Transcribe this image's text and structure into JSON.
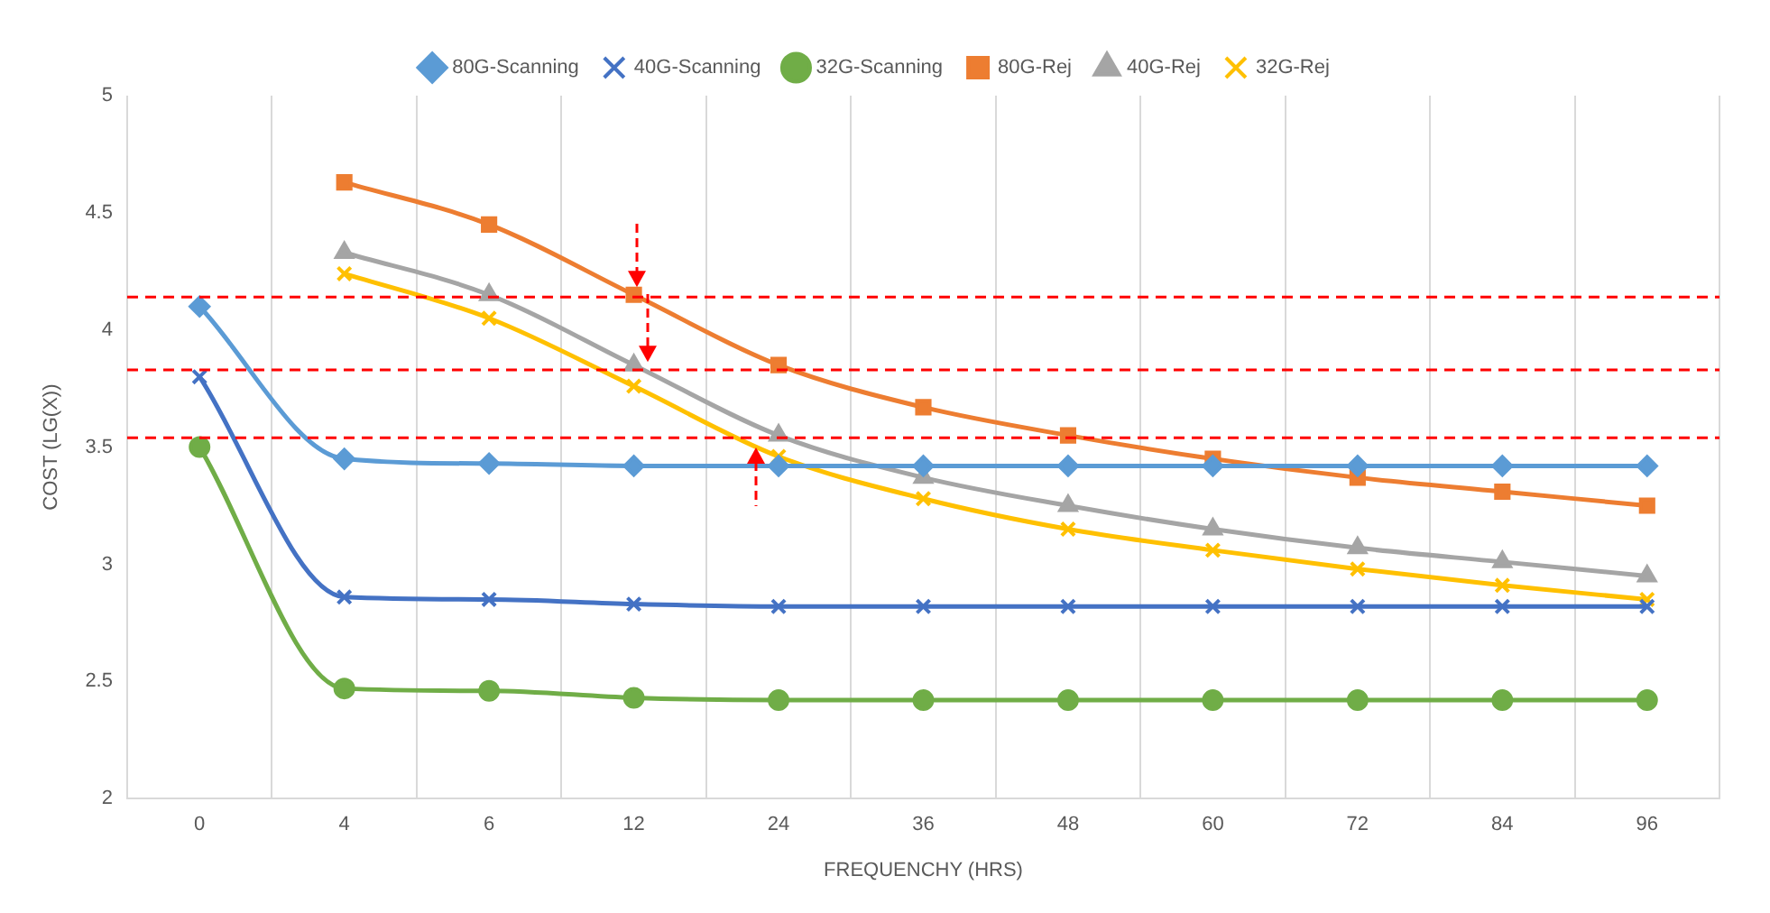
{
  "chart_data": {
    "type": "line",
    "xlabel": "FREQUENCHY (HRS)",
    "ylabel": "COST (LG(X))",
    "categories": [
      "0",
      "4",
      "6",
      "12",
      "24",
      "36",
      "48",
      "60",
      "72",
      "84",
      "96"
    ],
    "series": [
      {
        "name": "80G-Scanning",
        "color": "#5b9bd5",
        "marker": "diamond",
        "values": [
          4.1,
          3.45,
          3.43,
          3.42,
          3.42,
          3.42,
          3.42,
          3.42,
          3.42,
          3.42,
          3.42
        ]
      },
      {
        "name": "40G-Scanning",
        "color": "#4472c4",
        "marker": "cross",
        "values": [
          3.8,
          2.86,
          2.85,
          2.83,
          2.82,
          2.82,
          2.82,
          2.82,
          2.82,
          2.82,
          2.82
        ]
      },
      {
        "name": "32G-Scanning",
        "color": "#70ad47",
        "marker": "circle",
        "values": [
          3.5,
          2.47,
          2.46,
          2.43,
          2.42,
          2.42,
          2.42,
          2.42,
          2.42,
          2.42,
          2.42
        ]
      },
      {
        "name": "80G-Rej",
        "color": "#ed7d31",
        "marker": "square",
        "values": [
          null,
          4.63,
          4.45,
          4.15,
          3.85,
          3.67,
          3.55,
          3.45,
          3.37,
          3.31,
          3.25
        ]
      },
      {
        "name": "40G-Rej",
        "color": "#a5a5a5",
        "marker": "triangle",
        "values": [
          null,
          4.33,
          4.15,
          3.85,
          3.55,
          3.37,
          3.25,
          3.15,
          3.07,
          3.01,
          2.95
        ]
      },
      {
        "name": "32G-Rej",
        "color": "#ffc000",
        "marker": "cross",
        "values": [
          null,
          4.24,
          4.05,
          3.76,
          3.46,
          3.28,
          3.15,
          3.06,
          2.98,
          2.91,
          2.85
        ]
      }
    ],
    "ylim": [
      2,
      5
    ],
    "yticks": [
      2,
      2.5,
      3,
      3.5,
      4,
      4.5,
      5
    ],
    "ref_lines": [
      {
        "axis": "y",
        "value": 4.14,
        "color": "#ff0000",
        "line_style": "dashed"
      },
      {
        "axis": "y",
        "value": 3.83,
        "color": "#ff0000",
        "line_style": "dashed"
      },
      {
        "axis": "y",
        "value": 3.54,
        "color": "#ff0000",
        "line_style": "dashed"
      }
    ],
    "grid": "x",
    "legend": "top",
    "line_style": "solid"
  }
}
